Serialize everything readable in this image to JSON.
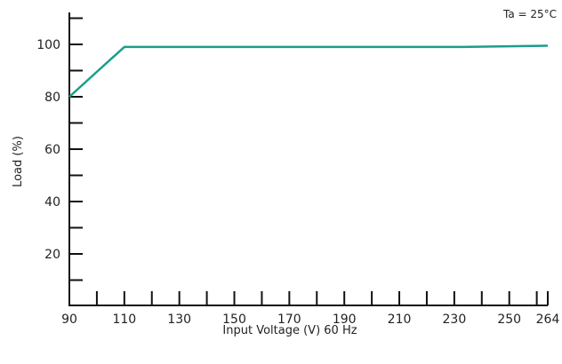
{
  "chart_data": {
    "type": "line",
    "title": "",
    "annotation": "Ta = 25°C",
    "xlabel": "Input Voltage (V) 60 Hz",
    "ylabel": "Load (%)",
    "x_ticks": [
      90,
      110,
      130,
      150,
      170,
      190,
      210,
      230,
      250,
      264
    ],
    "y_ticks": [
      20,
      40,
      60,
      80,
      100
    ],
    "xlim": [
      90,
      264
    ],
    "ylim": [
      0,
      112
    ],
    "grid": false,
    "line_color": "#1a9e8a",
    "series": [
      {
        "x": [
          90,
          110,
          233,
          264
        ],
        "y": [
          80,
          99,
          99,
          99.5
        ]
      }
    ]
  }
}
